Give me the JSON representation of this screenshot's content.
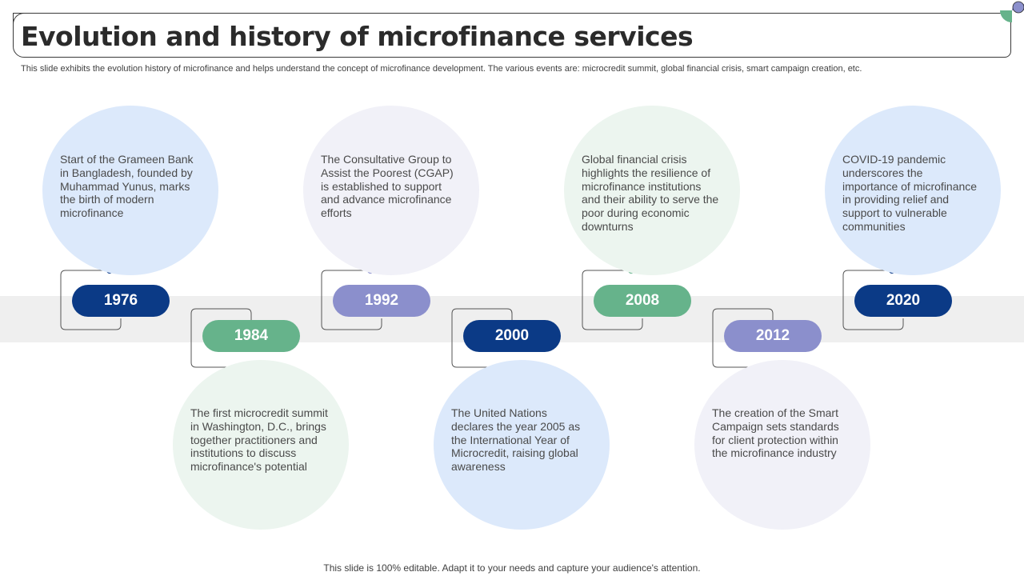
{
  "header": {
    "title": "Evolution and history of microfinance services",
    "subtitle": "This slide exhibits the evolution history of microfinance and helps understand the concept of microfinance development. The various events are: microcredit summit, global financial crisis, smart campaign creation, etc."
  },
  "colors": {
    "dark_blue": "#0b3a86",
    "green": "#66b38b",
    "lavender": "#8b8fcc",
    "light_blue_bg": "#dce9fb",
    "light_green_bg": "#ecf5ef",
    "light_lavender_bg": "#f1f1f8",
    "band": "#efefef"
  },
  "timeline": [
    {
      "year": "1976",
      "text": "Start of the Grameen Bank in Bangladesh, founded by Muhammad Yunus, marks the birth of modern microfinance",
      "position": "top",
      "color": "dark_blue"
    },
    {
      "year": "1984",
      "text": "The first microcredit summit in Washington, D.C., brings together practitioners and institutions to discuss microfinance's potential",
      "position": "bottom",
      "color": "green"
    },
    {
      "year": "1992",
      "text": "The Consultative Group to Assist the Poorest (CGAP) is established to support and advance microfinance efforts",
      "position": "top",
      "color": "lavender"
    },
    {
      "year": "2000",
      "text": "The United Nations declares the year 2005 as the International Year of Microcredit, raising global awareness",
      "position": "bottom",
      "color": "dark_blue"
    },
    {
      "year": "2008",
      "text": "Global financial crisis highlights the resilience of microfinance institutions and their ability to serve the poor during economic downturns",
      "position": "top",
      "color": "green"
    },
    {
      "year": "2012",
      "text": "The creation of the Smart Campaign sets standards for client protection within the microfinance industry",
      "position": "bottom",
      "color": "lavender"
    },
    {
      "year": "2020",
      "text": "COVID-19 pandemic underscores the importance of microfinance in providing relief and support to vulnerable communities",
      "position": "top",
      "color": "dark_blue"
    }
  ],
  "footer": {
    "text": "This slide is 100% editable. Adapt it to your needs and capture your audience's attention."
  }
}
